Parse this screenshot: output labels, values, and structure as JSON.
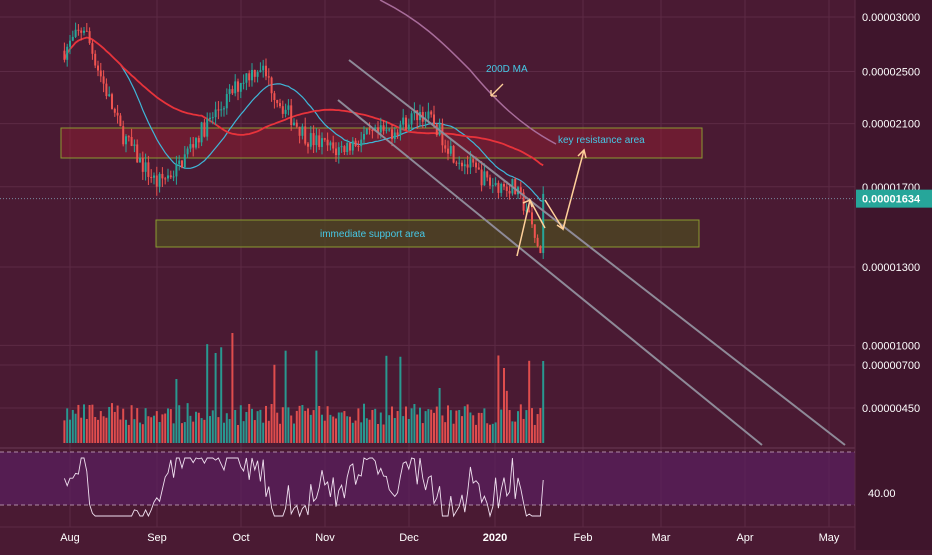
{
  "colors": {
    "background": "#4a1a33",
    "axis_panel": "#3f152c",
    "grid": "#5c2a45",
    "up": "#26a69a",
    "down": "#ef5350",
    "ma50": "#e8333b",
    "ma20": "#3fb6d8",
    "ma200": "#a86c9a",
    "channel": "#8e8a98",
    "resistance_zone": "#9a2030",
    "support_zone": "#4e4a22",
    "annotation": "#46c8e6",
    "arrow": "#ffd09a",
    "rsi_band": "#5a2060",
    "price_badge": "#26a69a"
  },
  "chart_data": {
    "type": "candlestick",
    "y_scale": "log",
    "y_range": [
      4.2e-06,
      3.2e-06
    ],
    "y_ticks": [
      "0.00003000",
      "0.00002500",
      "0.00002100",
      "0.00001700",
      "0.00001300",
      "0.00001000",
      "0.00000700",
      "0.00000450"
    ],
    "y_tick_values": [
      3e-05,
      2.5e-05,
      2.1e-05,
      1.7e-05,
      1.3e-05,
      1e-05,
      7e-06,
      4.5e-06
    ],
    "last_price_label": "0.00001634",
    "last_price": 1.634e-05,
    "x_ticks": [
      "Aug",
      "Sep",
      "Oct",
      "Nov",
      "Dec",
      "2020",
      "Feb",
      "Mar",
      "Apr",
      "May"
    ],
    "series": [
      {
        "name": "200D MA",
        "kind": "moving-average"
      }
    ],
    "annotations": [
      {
        "text": "200D MA",
        "target": "200-day moving average line"
      },
      {
        "text": "key resistance area",
        "price_range": [
          1.98e-05,
          2.22e-05
        ],
        "date_range": [
          "2019-07-22",
          "2020-03-15"
        ]
      },
      {
        "text": "immediate support area",
        "price_range": [
          1.43e-05,
          1.6e-05
        ],
        "date_range": [
          "2019-08-25",
          "2020-03-15"
        ]
      }
    ],
    "rsi": {
      "level_label": "40.00",
      "level": 40
    },
    "descending_channel": {
      "upper": "from 2019-11-01 toward 2020-05-05",
      "lower": "from 2019-10-25 toward 2020-04-18"
    }
  }
}
